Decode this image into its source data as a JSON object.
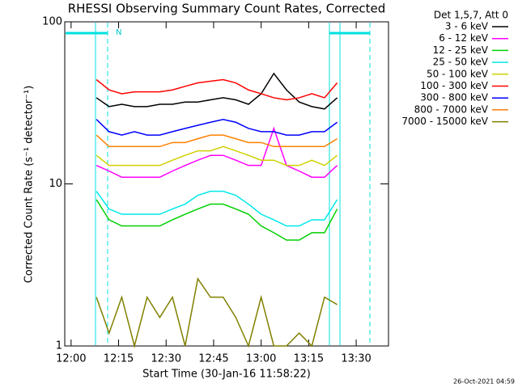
{
  "chart_data": {
    "type": "line",
    "title": "RHESSI Observing Summary Count Rates, Corrected",
    "x_label": "Start Time (30-Jan-16 11:58:22)",
    "y_label": "Corrected Count Rate (s⁻¹ detector⁻¹)",
    "legend_title": "Det 1,5,7, Att 0",
    "annotation": "N",
    "timestamp": "26-Oct-2021 04:59",
    "legend_position": "outside-top-right",
    "log_y": true,
    "xlim": [
      -2,
      100.2
    ],
    "ylim": [
      1,
      100
    ],
    "xticks": [
      {
        "value": 0,
        "label": "12:00"
      },
      {
        "value": 15,
        "label": "12:15"
      },
      {
        "value": 30,
        "label": "12:30"
      },
      {
        "value": 45,
        "label": "12:45"
      },
      {
        "value": 60,
        "label": "13:00"
      },
      {
        "value": 75,
        "label": "13:15"
      },
      {
        "value": 90,
        "label": "13:30"
      }
    ],
    "yticks": [
      1,
      10,
      100
    ],
    "x": [
      8,
      12,
      16,
      20,
      24,
      28,
      32,
      36,
      40,
      44,
      48,
      52,
      56,
      60,
      64,
      68,
      72,
      76,
      80,
      84
    ],
    "series": [
      {
        "name": "3 - 6 keV",
        "color": "#000000",
        "values": [
          34,
          30,
          31,
          30,
          30,
          31,
          31,
          32,
          32,
          33,
          34,
          33,
          31,
          36,
          48,
          38,
          32,
          30,
          29,
          34
        ]
      },
      {
        "name": "6 - 12 keV",
        "color": "#ff00ff",
        "values": [
          13,
          12,
          11,
          11,
          11,
          11,
          12,
          13,
          14,
          15,
          15,
          14,
          13,
          13,
          22,
          13,
          12,
          11,
          11,
          13
        ]
      },
      {
        "name": "12 - 25 keV",
        "color": "#00d000",
        "values": [
          8,
          6,
          5.5,
          5.5,
          5.5,
          5.5,
          6,
          6.5,
          7,
          7.5,
          7.5,
          7,
          6.5,
          5.5,
          5,
          4.5,
          4.5,
          5,
          5,
          7
        ]
      },
      {
        "name": "25 - 50 keV",
        "color": "#00e8e8",
        "values": [
          9,
          7,
          6.5,
          6.5,
          6.5,
          6.5,
          7,
          7.5,
          8.5,
          9,
          9,
          8.5,
          7.5,
          6.5,
          6,
          5.5,
          5.5,
          6,
          6,
          8
        ]
      },
      {
        "name": "50 - 100 keV",
        "color": "#d0d000",
        "values": [
          15,
          13,
          13,
          13,
          13,
          13,
          14,
          15,
          16,
          16,
          17,
          16,
          15,
          14,
          14,
          13,
          13,
          14,
          13,
          15
        ]
      },
      {
        "name": "100 - 300 keV",
        "color": "#ff0000",
        "values": [
          44,
          38,
          36,
          37,
          37,
          37,
          38,
          40,
          42,
          43,
          44,
          42,
          38,
          36,
          34,
          33,
          34,
          36,
          34,
          42
        ]
      },
      {
        "name": "300 - 800 keV",
        "color": "#0000ff",
        "values": [
          25,
          21,
          20,
          21,
          20,
          20,
          21,
          22,
          23,
          24,
          25,
          24,
          22,
          21,
          21,
          20,
          20,
          21,
          21,
          24
        ]
      },
      {
        "name": "800 - 7000 keV",
        "color": "#ff8000",
        "values": [
          20,
          17,
          17,
          17,
          17,
          17,
          18,
          18,
          19,
          20,
          20,
          19,
          18,
          18,
          17,
          17,
          17,
          17,
          17,
          19
        ]
      },
      {
        "name": "7000 - 15000 keV",
        "color": "#808000",
        "values": [
          2,
          1.2,
          2,
          1,
          2,
          1.5,
          2,
          1,
          2.6,
          2,
          2,
          1.5,
          1,
          2,
          1,
          1,
          1.2,
          1,
          2,
          1.8
        ]
      }
    ]
  }
}
